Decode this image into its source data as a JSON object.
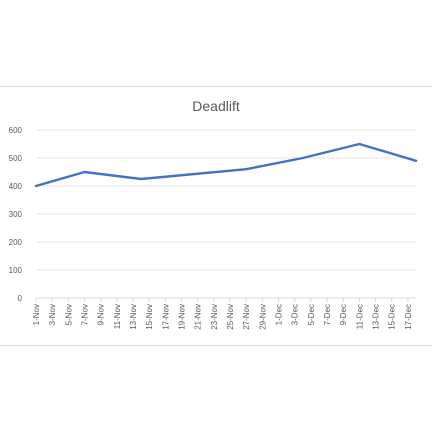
{
  "chart_data": {
    "type": "line",
    "title": "Deadlift",
    "xlabel": "",
    "ylabel": "",
    "ylim": [
      0,
      600
    ],
    "yticks": [
      0,
      100,
      200,
      300,
      400,
      500,
      600
    ],
    "grid": true,
    "legend": "none",
    "categories": [
      "1-Nov",
      "3-Nov",
      "5-Nov",
      "7-Nov",
      "9-Nov",
      "11-Nov",
      "13-Nov",
      "15-Nov",
      "17-Nov",
      "19-Nov",
      "21-Nov",
      "23-Nov",
      "25-Nov",
      "27-Nov",
      "29-Nov",
      "1-Dec",
      "3-Dec",
      "5-Dec",
      "7-Dec",
      "9-Dec",
      "11-Dec",
      "13-Dec",
      "15-Dec",
      "17-Dec"
    ],
    "series": [
      {
        "color": "#4472c4",
        "points": [
          {
            "x": "1-Nov",
            "y": 400
          },
          {
            "x": "7-Nov",
            "y": 450
          },
          {
            "x": "14-Nov",
            "y": 425
          },
          {
            "x": "27-Nov",
            "y": 460
          },
          {
            "x": "4-Dec",
            "y": 500
          },
          {
            "x": "11-Dec",
            "y": 550
          },
          {
            "x": "18-Dec",
            "y": 490
          }
        ]
      }
    ]
  }
}
